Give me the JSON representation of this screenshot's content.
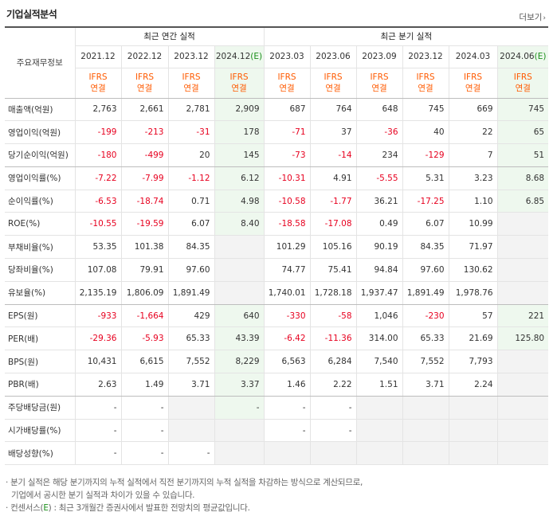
{
  "title": "기업실적분석",
  "more_label": "더보기",
  "header": {
    "row_label": "주요재무정보",
    "annual_group": "최근 연간 실적",
    "quarter_group": "최근 분기 실적",
    "annual_periods": [
      "2021.12",
      "2022.12",
      "2023.12",
      "2024.12"
    ],
    "annual_last_mark": "(E)",
    "quarter_periods": [
      "2023.03",
      "2023.06",
      "2023.09",
      "2023.12",
      "2024.03",
      "2024.06"
    ],
    "quarter_last_mark": "(E)",
    "ifrs_line1": "IFRS",
    "ifrs_line2": "연결"
  },
  "rows": [
    {
      "label": "매출액(억원)",
      "values": [
        "2,763",
        "2,661",
        "2,781",
        "2,909",
        "687",
        "764",
        "648",
        "745",
        "669",
        "745"
      ]
    },
    {
      "label": "영업이익(억원)",
      "values": [
        "-199",
        "-213",
        "-31",
        "178",
        "-71",
        "37",
        "-36",
        "40",
        "22",
        "65"
      ]
    },
    {
      "label": "당기순이익(억원)",
      "values": [
        "-180",
        "-499",
        "20",
        "145",
        "-73",
        "-14",
        "234",
        "-129",
        "7",
        "51"
      ]
    },
    {
      "label": "영업이익률(%)",
      "values": [
        "-7.22",
        "-7.99",
        "-1.12",
        "6.12",
        "-10.31",
        "4.91",
        "-5.55",
        "5.31",
        "3.23",
        "8.68"
      ]
    },
    {
      "label": "순이익률(%)",
      "values": [
        "-6.53",
        "-18.74",
        "0.71",
        "4.98",
        "-10.58",
        "-1.77",
        "36.21",
        "-17.25",
        "1.10",
        "6.85"
      ]
    },
    {
      "label": "ROE(%)",
      "values": [
        "-10.55",
        "-19.59",
        "6.07",
        "8.40",
        "-18.58",
        "-17.08",
        "0.49",
        "6.07",
        "10.99",
        ""
      ]
    },
    {
      "label": "부채비율(%)",
      "values": [
        "53.35",
        "101.38",
        "84.35",
        "",
        "101.29",
        "105.16",
        "90.19",
        "84.35",
        "71.97",
        ""
      ]
    },
    {
      "label": "당좌비율(%)",
      "values": [
        "107.08",
        "79.91",
        "97.60",
        "",
        "74.77",
        "75.41",
        "94.84",
        "97.60",
        "130.62",
        ""
      ]
    },
    {
      "label": "유보율(%)",
      "values": [
        "2,135.19",
        "1,806.09",
        "1,891.49",
        "",
        "1,740.01",
        "1,728.18",
        "1,937.47",
        "1,891.49",
        "1,978.76",
        ""
      ]
    },
    {
      "label": "EPS(원)",
      "values": [
        "-933",
        "-1,664",
        "429",
        "640",
        "-330",
        "-58",
        "1,046",
        "-230",
        "57",
        "221"
      ]
    },
    {
      "label": "PER(배)",
      "values": [
        "-29.36",
        "-5.93",
        "65.33",
        "43.39",
        "-6.42",
        "-11.36",
        "314.00",
        "65.33",
        "21.69",
        "125.80"
      ]
    },
    {
      "label": "BPS(원)",
      "values": [
        "10,431",
        "6,615",
        "7,552",
        "8,229",
        "6,563",
        "6,284",
        "7,540",
        "7,552",
        "7,793",
        ""
      ]
    },
    {
      "label": "PBR(배)",
      "values": [
        "2.63",
        "1.49",
        "3.71",
        "3.37",
        "1.46",
        "2.22",
        "1.51",
        "3.71",
        "2.24",
        ""
      ]
    },
    {
      "label": "주당배당금(원)",
      "values": [
        "-",
        "-",
        "",
        "-",
        "-",
        "-",
        "",
        "",
        "",
        ""
      ]
    },
    {
      "label": "시가배당률(%)",
      "values": [
        "-",
        "-",
        "",
        "",
        "-",
        "-",
        "",
        "",
        "",
        ""
      ]
    },
    {
      "label": "배당성향(%)",
      "values": [
        "-",
        "-",
        "-",
        "",
        "",
        "",
        "",
        "",
        "",
        ""
      ]
    }
  ],
  "notes": {
    "line1": "· 분기 실적은 해당 분기까지의 누적 실적에서 직전 분기까지의 누적 실적을 차감하는 방식으로 계산되므로,",
    "line2": "기업에서 공시한 분기 실적과 차이가 있을 수 있습니다.",
    "line3_prefix": "· 컨센서스(",
    "line3_mark": "E",
    "line3_suffix": ") : 최근 3개월간 증권사에서 발표한 전망치의 평균값입니다."
  }
}
